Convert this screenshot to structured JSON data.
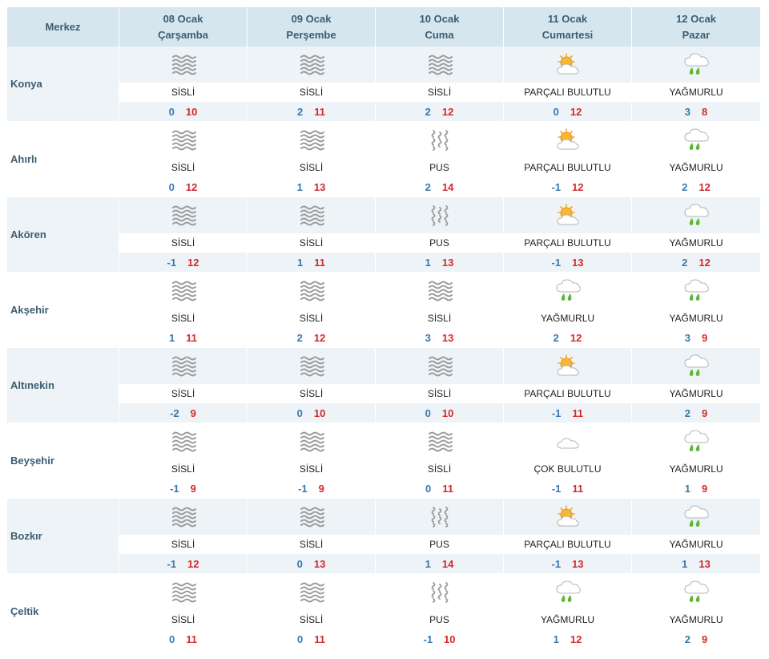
{
  "header": {
    "merkez_label": "Merkez",
    "days": [
      {
        "date": "08 Ocak",
        "day": "Çarşamba"
      },
      {
        "date": "09 Ocak",
        "day": "Perşembe"
      },
      {
        "date": "10 Ocak",
        "day": "Cuma"
      },
      {
        "date": "11 Ocak",
        "day": "Cumartesi"
      },
      {
        "date": "12 Ocak",
        "day": "Pazar"
      }
    ]
  },
  "icons": {
    "SİSLİ": "fog-icon",
    "PUS": "haze-icon",
    "PARÇALI BULUTLU": "partly-cloudy-icon",
    "YAĞMURLU": "rain-icon",
    "ÇOK BULUTLU": "mostly-cloudy-icon"
  },
  "colors": {
    "header_bg": "#d5e6ee",
    "row_alt_bg": "#edf3f6",
    "city_text": "#3d5d72",
    "min_temp": "#3978b0",
    "max_temp": "#d4292b"
  },
  "rows": [
    {
      "city": "Konya",
      "days": [
        {
          "cond": "SİSLİ",
          "min": "0",
          "max": "10"
        },
        {
          "cond": "SİSLİ",
          "min": "2",
          "max": "11"
        },
        {
          "cond": "SİSLİ",
          "min": "2",
          "max": "12"
        },
        {
          "cond": "PARÇALI BULUTLU",
          "min": "0",
          "max": "12"
        },
        {
          "cond": "YAĞMURLU",
          "min": "3",
          "max": "8"
        }
      ]
    },
    {
      "city": "Ahırlı",
      "days": [
        {
          "cond": "SİSLİ",
          "min": "0",
          "max": "12"
        },
        {
          "cond": "SİSLİ",
          "min": "1",
          "max": "13"
        },
        {
          "cond": "PUS",
          "min": "2",
          "max": "14"
        },
        {
          "cond": "PARÇALI BULUTLU",
          "min": "-1",
          "max": "12"
        },
        {
          "cond": "YAĞMURLU",
          "min": "2",
          "max": "12"
        }
      ]
    },
    {
      "city": "Akören",
      "days": [
        {
          "cond": "SİSLİ",
          "min": "-1",
          "max": "12"
        },
        {
          "cond": "SİSLİ",
          "min": "1",
          "max": "11"
        },
        {
          "cond": "PUS",
          "min": "1",
          "max": "13"
        },
        {
          "cond": "PARÇALI BULUTLU",
          "min": "-1",
          "max": "13"
        },
        {
          "cond": "YAĞMURLU",
          "min": "2",
          "max": "12"
        }
      ]
    },
    {
      "city": "Akşehir",
      "days": [
        {
          "cond": "SİSLİ",
          "min": "1",
          "max": "11"
        },
        {
          "cond": "SİSLİ",
          "min": "2",
          "max": "12"
        },
        {
          "cond": "SİSLİ",
          "min": "3",
          "max": "13"
        },
        {
          "cond": "YAĞMURLU",
          "min": "2",
          "max": "12"
        },
        {
          "cond": "YAĞMURLU",
          "min": "3",
          "max": "9"
        }
      ]
    },
    {
      "city": "Altınekin",
      "days": [
        {
          "cond": "SİSLİ",
          "min": "-2",
          "max": "9"
        },
        {
          "cond": "SİSLİ",
          "min": "0",
          "max": "10"
        },
        {
          "cond": "SİSLİ",
          "min": "0",
          "max": "10"
        },
        {
          "cond": "PARÇALI BULUTLU",
          "min": "-1",
          "max": "11"
        },
        {
          "cond": "YAĞMURLU",
          "min": "2",
          "max": "9"
        }
      ]
    },
    {
      "city": "Beyşehir",
      "days": [
        {
          "cond": "SİSLİ",
          "min": "-1",
          "max": "9"
        },
        {
          "cond": "SİSLİ",
          "min": "-1",
          "max": "9"
        },
        {
          "cond": "SİSLİ",
          "min": "0",
          "max": "11"
        },
        {
          "cond": "ÇOK BULUTLU",
          "min": "-1",
          "max": "11"
        },
        {
          "cond": "YAĞMURLU",
          "min": "1",
          "max": "9"
        }
      ]
    },
    {
      "city": "Bozkır",
      "days": [
        {
          "cond": "SİSLİ",
          "min": "-1",
          "max": "12"
        },
        {
          "cond": "SİSLİ",
          "min": "0",
          "max": "13"
        },
        {
          "cond": "PUS",
          "min": "1",
          "max": "14"
        },
        {
          "cond": "PARÇALI BULUTLU",
          "min": "-1",
          "max": "13"
        },
        {
          "cond": "YAĞMURLU",
          "min": "1",
          "max": "13"
        }
      ]
    },
    {
      "city": "Çeltik",
      "days": [
        {
          "cond": "SİSLİ",
          "min": "0",
          "max": "11"
        },
        {
          "cond": "SİSLİ",
          "min": "0",
          "max": "11"
        },
        {
          "cond": "PUS",
          "min": "-1",
          "max": "10"
        },
        {
          "cond": "YAĞMURLU",
          "min": "1",
          "max": "12"
        },
        {
          "cond": "YAĞMURLU",
          "min": "2",
          "max": "9"
        }
      ]
    }
  ]
}
